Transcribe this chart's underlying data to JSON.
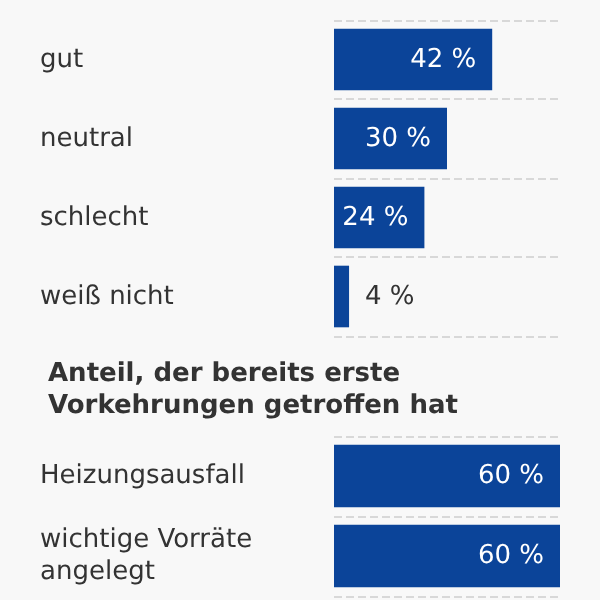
{
  "chart_data": [
    {
      "type": "bar",
      "orientation": "horizontal",
      "categories": [
        "gut",
        "neutral",
        "schlecht",
        "weiß nicht"
      ],
      "values": [
        42,
        30,
        24,
        4
      ],
      "color": "#0b4499",
      "value_labels": [
        "42 %",
        "30 %",
        "24 %",
        "4 %"
      ],
      "grid": "y"
    },
    {
      "type": "bar",
      "orientation": "horizontal",
      "title": "Anteil, der bereits erste Vorkehrungen getroffen hat",
      "categories": [
        "Heizungsausfall",
        "wichtige Vorräte angelegt"
      ],
      "values": [
        60,
        60
      ],
      "color": "#0b4499",
      "value_labels": [
        "60 %",
        "60 %"
      ],
      "grid": "y"
    }
  ]
}
